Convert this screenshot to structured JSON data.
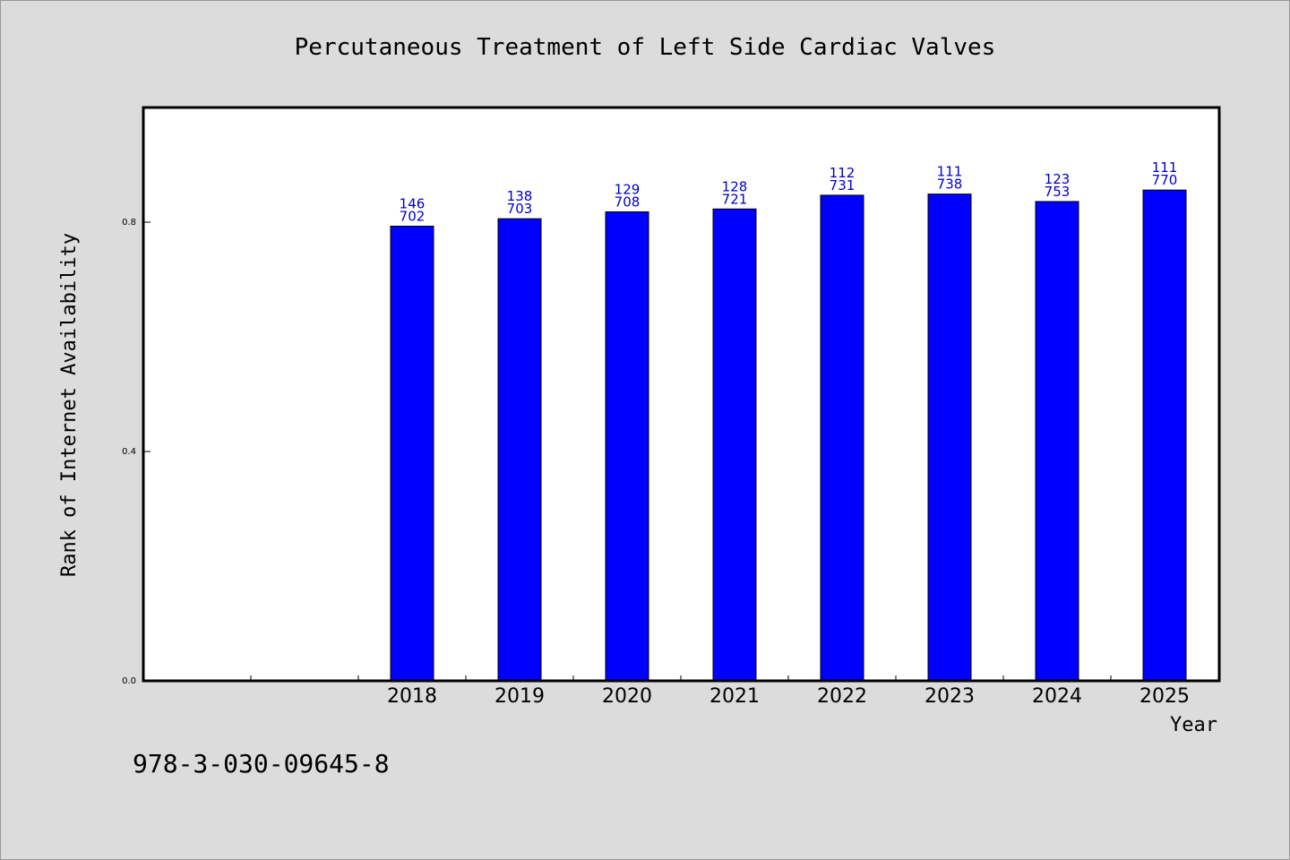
{
  "chart_data": {
    "type": "bar",
    "title": "Percutaneous Treatment of Left Side Cardiac Valves",
    "xlabel": "Year",
    "ylabel": "Rank of Internet Availability",
    "categories": [
      "",
      "",
      "2018",
      "2019",
      "2020",
      "2021",
      "2022",
      "2023",
      "2024",
      "2025"
    ],
    "values": [
      null,
      null,
      0.793,
      0.806,
      0.818,
      0.823,
      0.847,
      0.849,
      0.836,
      0.856
    ],
    "data_labels": [
      null,
      null,
      [
        "146",
        "702"
      ],
      [
        "138",
        "703"
      ],
      [
        "129",
        "708"
      ],
      [
        "128",
        "721"
      ],
      [
        "112",
        "731"
      ],
      [
        "111",
        "738"
      ],
      [
        "123",
        "753"
      ],
      [
        "111",
        "770"
      ]
    ],
    "yticks": [
      "0.0",
      "0.4",
      "0.8"
    ],
    "ylim": [
      0,
      1.0
    ],
    "grid": false,
    "bar_color": "#0000ff",
    "label_color": "#0000c8"
  },
  "footer": {
    "isbn": "978-3-030-09645-8"
  }
}
